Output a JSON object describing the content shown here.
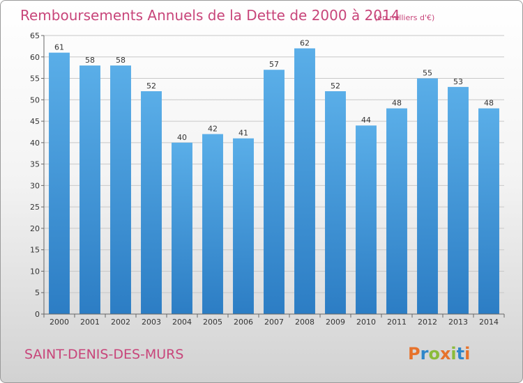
{
  "title": "Remboursements Annuels de la Dette de 2000 à 2014",
  "subtitle": "(en milliers d'€)",
  "place": "SAINT-DENIS-DES-MURS",
  "logo": {
    "text": "Proxiti",
    "colors": [
      "#e7722b",
      "#2f86c9",
      "#8bbb3b",
      "#e7722b",
      "#8bbb3b",
      "#2f86c9",
      "#e7722b"
    ]
  },
  "chart_data": {
    "type": "bar",
    "categories": [
      "2000",
      "2001",
      "2002",
      "2003",
      "2004",
      "2005",
      "2006",
      "2007",
      "2008",
      "2009",
      "2010",
      "2011",
      "2012",
      "2013",
      "2014"
    ],
    "values": [
      61,
      58,
      58,
      52,
      40,
      42,
      41,
      57,
      62,
      52,
      44,
      48,
      55,
      53,
      48
    ],
    "title": "Remboursements Annuels de la Dette de 2000 à 2014",
    "subtitle": "(en milliers d'€)",
    "xlabel": "",
    "ylabel": "",
    "ylim": [
      0,
      65
    ],
    "yticks": [
      0,
      5,
      10,
      15,
      20,
      25,
      30,
      35,
      40,
      45,
      50,
      55,
      60,
      65
    ],
    "grid": true,
    "colors": {
      "bar_top": "#5aaee8",
      "bar_bottom": "#2c7dc4",
      "accent": "#c8457a"
    }
  }
}
